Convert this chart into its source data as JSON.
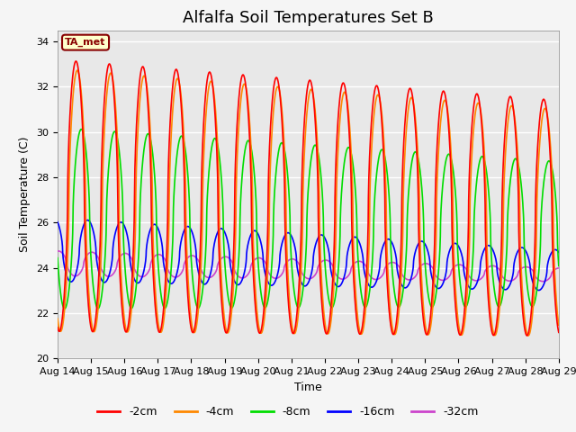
{
  "title": "Alfalfa Soil Temperatures Set B",
  "xlabel": "Time",
  "ylabel": "Soil Temperature (C)",
  "ylim": [
    20,
    34.5
  ],
  "xlim": [
    0,
    15
  ],
  "yticks": [
    20,
    22,
    24,
    26,
    28,
    30,
    32,
    34
  ],
  "xtick_labels": [
    "Aug 14",
    "Aug 15",
    "Aug 16",
    "Aug 17",
    "Aug 18",
    "Aug 19",
    "Aug 20",
    "Aug 21",
    "Aug 22",
    "Aug 23",
    "Aug 24",
    "Aug 25",
    "Aug 26",
    "Aug 27",
    "Aug 28",
    "Aug 29"
  ],
  "line_colors": {
    "-2cm": "#ff0000",
    "-4cm": "#ff8800",
    "-8cm": "#00dd00",
    "-16cm": "#0000ff",
    "-32cm": "#cc44cc"
  },
  "legend_labels": [
    "-2cm",
    "-4cm",
    "-8cm",
    "-16cm",
    "-32cm"
  ],
  "annotation_text": "TA_met",
  "annotation_color": "#880000",
  "annotation_bg": "#ffffcc",
  "background_color": "#e8e8e8",
  "fig_bg": "#f5f5f5",
  "title_fontsize": 13,
  "axis_fontsize": 9,
  "tick_fontsize": 8
}
